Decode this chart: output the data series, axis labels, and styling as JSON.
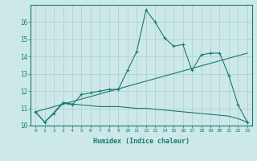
{
  "xlabel": "Humidex (Indice chaleur)",
  "x_values": [
    0,
    1,
    2,
    3,
    4,
    5,
    6,
    7,
    8,
    9,
    10,
    11,
    12,
    13,
    14,
    15,
    16,
    17,
    18,
    19,
    20,
    21,
    22,
    23
  ],
  "line1": [
    10.8,
    10.2,
    10.7,
    11.3,
    11.2,
    11.8,
    11.9,
    12.0,
    12.1,
    12.1,
    13.2,
    14.3,
    16.7,
    16.0,
    15.1,
    14.6,
    14.7,
    13.2,
    14.1,
    14.2,
    14.2,
    12.9,
    11.2,
    10.2
  ],
  "line2": [
    10.8,
    10.2,
    10.75,
    11.35,
    11.25,
    11.2,
    11.15,
    11.1,
    11.1,
    11.1,
    11.05,
    11.0,
    11.0,
    10.95,
    10.9,
    10.85,
    10.8,
    10.75,
    10.7,
    10.65,
    10.6,
    10.55,
    10.4,
    10.2
  ],
  "line3_x": [
    0,
    23
  ],
  "line3_y": [
    10.8,
    14.2
  ],
  "color": "#1a7a6e",
  "bg_color": "#cce8e8",
  "grid_color": "#aacfcf",
  "ylim": [
    10,
    17
  ],
  "xlim": [
    -0.5,
    23.5
  ],
  "yticks": [
    10,
    11,
    12,
    13,
    14,
    15,
    16
  ],
  "xticks": [
    0,
    1,
    2,
    3,
    4,
    5,
    6,
    7,
    8,
    9,
    10,
    11,
    12,
    13,
    14,
    15,
    16,
    17,
    18,
    19,
    20,
    21,
    22,
    23
  ],
  "xtick_labels": [
    "0",
    "1",
    "2",
    "3",
    "4",
    "5",
    "6",
    "7",
    "8",
    "9",
    "10",
    "11",
    "12",
    "13",
    "14",
    "15",
    "16",
    "17",
    "18",
    "19",
    "20",
    "21",
    "22",
    "23"
  ]
}
